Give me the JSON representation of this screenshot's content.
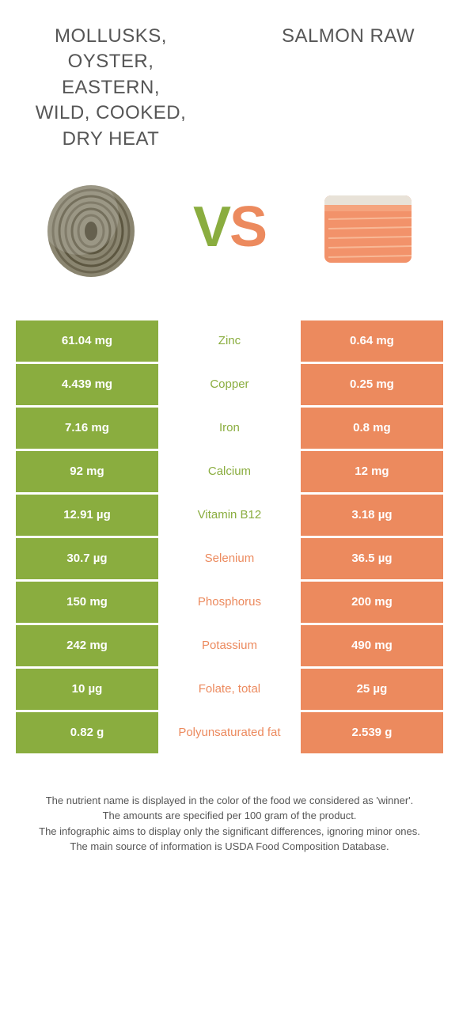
{
  "colors": {
    "left": "#8aad3f",
    "right": "#ec8a5e",
    "background": "#ffffff",
    "text": "#555555",
    "white": "#ffffff"
  },
  "food_left": {
    "title": "MOLLUSKS, OYSTER, EASTERN, WILD, COOKED, DRY HEAT"
  },
  "food_right": {
    "title": "SALMON RAW"
  },
  "vs": {
    "v": "V",
    "s": "S"
  },
  "rows": [
    {
      "left": "61.04 mg",
      "label": "Zinc",
      "right": "0.64 mg",
      "winner": "left"
    },
    {
      "left": "4.439 mg",
      "label": "Copper",
      "right": "0.25 mg",
      "winner": "left"
    },
    {
      "left": "7.16 mg",
      "label": "Iron",
      "right": "0.8 mg",
      "winner": "left"
    },
    {
      "left": "92 mg",
      "label": "Calcium",
      "right": "12 mg",
      "winner": "left"
    },
    {
      "left": "12.91 µg",
      "label": "Vitamin B12",
      "right": "3.18 µg",
      "winner": "left"
    },
    {
      "left": "30.7 µg",
      "label": "Selenium",
      "right": "36.5 µg",
      "winner": "right"
    },
    {
      "left": "150 mg",
      "label": "Phosphorus",
      "right": "200 mg",
      "winner": "right"
    },
    {
      "left": "242 mg",
      "label": "Potassium",
      "right": "490 mg",
      "winner": "right"
    },
    {
      "left": "10 µg",
      "label": "Folate, total",
      "right": "25 µg",
      "winner": "right"
    },
    {
      "left": "0.82 g",
      "label": "Polyunsaturated fat",
      "right": "2.539 g",
      "winner": "right"
    }
  ],
  "footnotes": [
    "The nutrient name is displayed in the color of the food we considered as 'winner'.",
    "The amounts are specified per 100 gram of the product.",
    "The infographic aims to display only the significant differences, ignoring minor ones.",
    "The main source of information is USDA Food Composition Database."
  ]
}
